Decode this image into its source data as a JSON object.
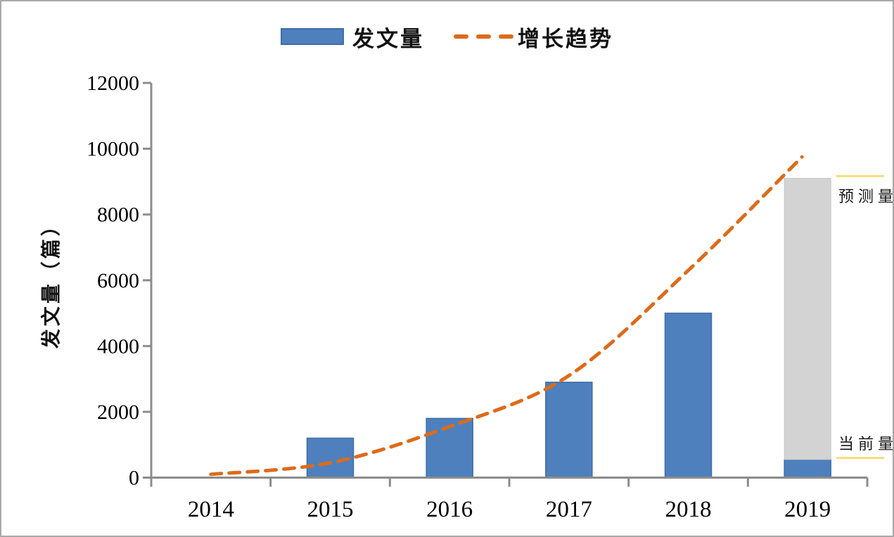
{
  "legend": {
    "bar_label": "发文量",
    "trend_label": "增长趋势"
  },
  "axes": {
    "y_title": "发文量（篇）",
    "y_ticks": [
      0,
      2000,
      4000,
      6000,
      8000,
      10000,
      12000
    ],
    "x_labels": [
      "2014",
      "2015",
      "2016",
      "2017",
      "2018",
      "2019"
    ]
  },
  "annotations": {
    "forecast_label": "预测量",
    "current_label": "当前量"
  },
  "colors": {
    "bar": "#4d80bd",
    "bar_border": "#3f6ea6",
    "forecast": "#d3d3d3",
    "forecast_border": "#c6c6c6",
    "trend": "#dd6b1a",
    "axis": "#8c8c8c",
    "annotation_line": "#fadc78"
  },
  "chart_data": {
    "type": "bar",
    "title": "",
    "xlabel": "",
    "ylabel": "发文量（篇）",
    "ylim": [
      0,
      12000
    ],
    "grid": false,
    "legend_position": "top",
    "categories": [
      "2014",
      "2015",
      "2016",
      "2017",
      "2018",
      "2019"
    ],
    "series": [
      {
        "name": "发文量",
        "type": "bar",
        "role": "current",
        "values": [
          0,
          1200,
          1800,
          2900,
          5000,
          550
        ]
      },
      {
        "name": "预测量",
        "type": "bar",
        "role": "forecast-stacked-on-current",
        "values": [
          0,
          0,
          0,
          0,
          0,
          8550
        ],
        "stacked_total_2019": 9100
      },
      {
        "name": "增长趋势",
        "type": "line-dashed",
        "values": [
          100,
          450,
          1550,
          3100,
          6300,
          9750
        ]
      }
    ]
  }
}
